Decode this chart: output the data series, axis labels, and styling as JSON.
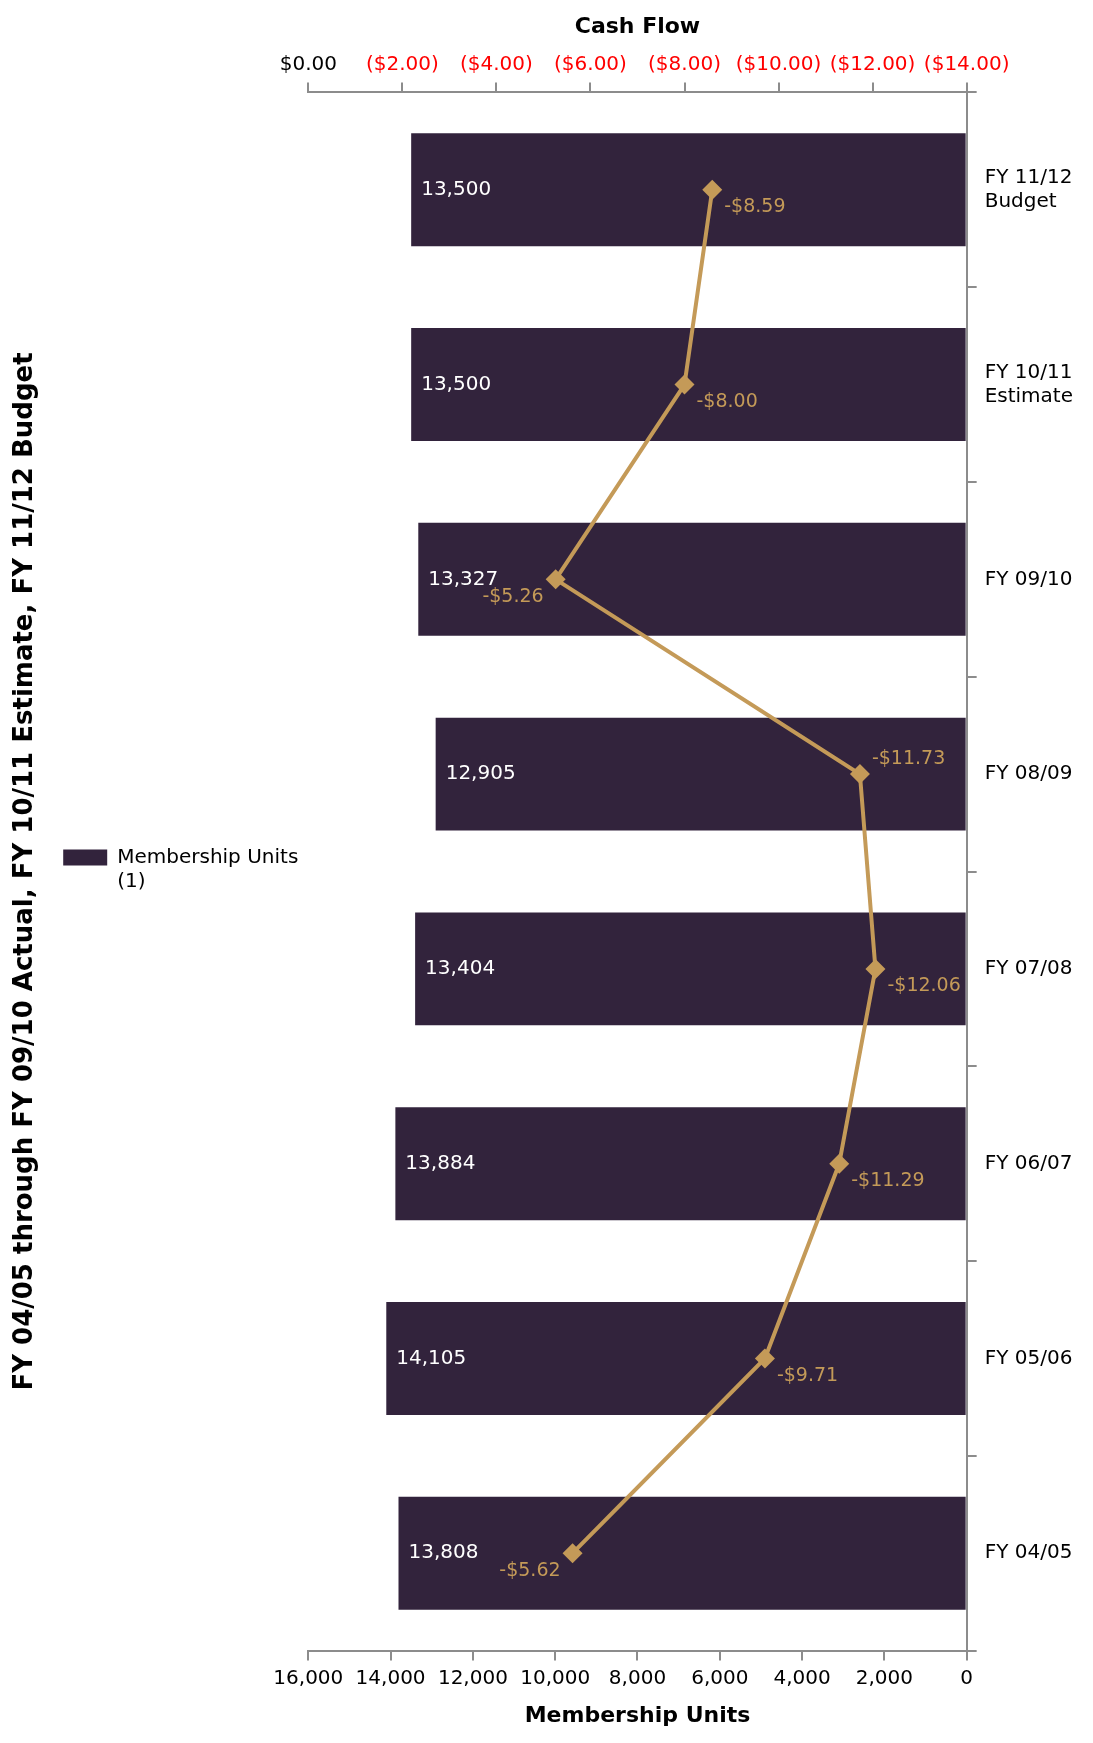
{
  "chart_data": {
    "type": "bar",
    "orientation": "horizontal",
    "title": "FY 04/05 through FY 09/10 Actual, FY 10/11 Estimate, FY 11/12 Budget",
    "xlabel": "Membership Units",
    "x2label": "Cash Flow",
    "categories": [
      "FY 11/12 Budget",
      "FY 10/11 Estimate",
      "FY 09/10",
      "FY 08/09",
      "FY 07/08",
      "FY 06/07",
      "FY 05/06",
      "FY 04/05"
    ],
    "xlim": [
      16000,
      0
    ],
    "xticks": [
      {
        "value": 16000,
        "label": "16,000"
      },
      {
        "value": 14000,
        "label": "14,000"
      },
      {
        "value": 12000,
        "label": "12,000"
      },
      {
        "value": 10000,
        "label": "10,000"
      },
      {
        "value": 8000,
        "label": "8,000"
      },
      {
        "value": 6000,
        "label": "6,000"
      },
      {
        "value": 4000,
        "label": "4,000"
      },
      {
        "value": 2000,
        "label": "2,000"
      },
      0
    ],
    "x2lim": [
      0,
      -14
    ],
    "x2ticks": [
      {
        "value": 0,
        "label": "$0.00"
      },
      {
        "value": -2,
        "label": "($2.00)"
      },
      {
        "value": -4,
        "label": "($4.00)"
      },
      {
        "value": -6,
        "label": "($6.00)"
      },
      {
        "value": -8,
        "label": "($8.00)"
      },
      {
        "value": -10,
        "label": "($10.00)"
      },
      {
        "value": -12,
        "label": "($12.00)"
      },
      {
        "value": -14,
        "label": "($14.00)"
      }
    ],
    "series": [
      {
        "name": "Membership Units (1)",
        "color": "#32233c",
        "values": [
          13500,
          13500,
          13327,
          12905,
          13404,
          13884,
          14105,
          13808
        ],
        "value_labels": [
          "13,500",
          "13,500",
          "13,327",
          "12,905",
          "13,404",
          "13,884",
          "14,105",
          "13,808"
        ]
      },
      {
        "type": "line",
        "axis": "x2",
        "color": "#c49a58",
        "values": [
          -8.59,
          -8.0,
          -5.26,
          -11.73,
          -12.06,
          -11.29,
          -9.71,
          -5.62
        ],
        "value_labels": [
          "-$8.59",
          "-$8.00",
          "-$5.26",
          "-$11.73",
          "-$12.06",
          "-$11.29",
          "-$9.71",
          "-$5.62"
        ]
      }
    ],
    "marker": "diamond",
    "legend": "left"
  }
}
